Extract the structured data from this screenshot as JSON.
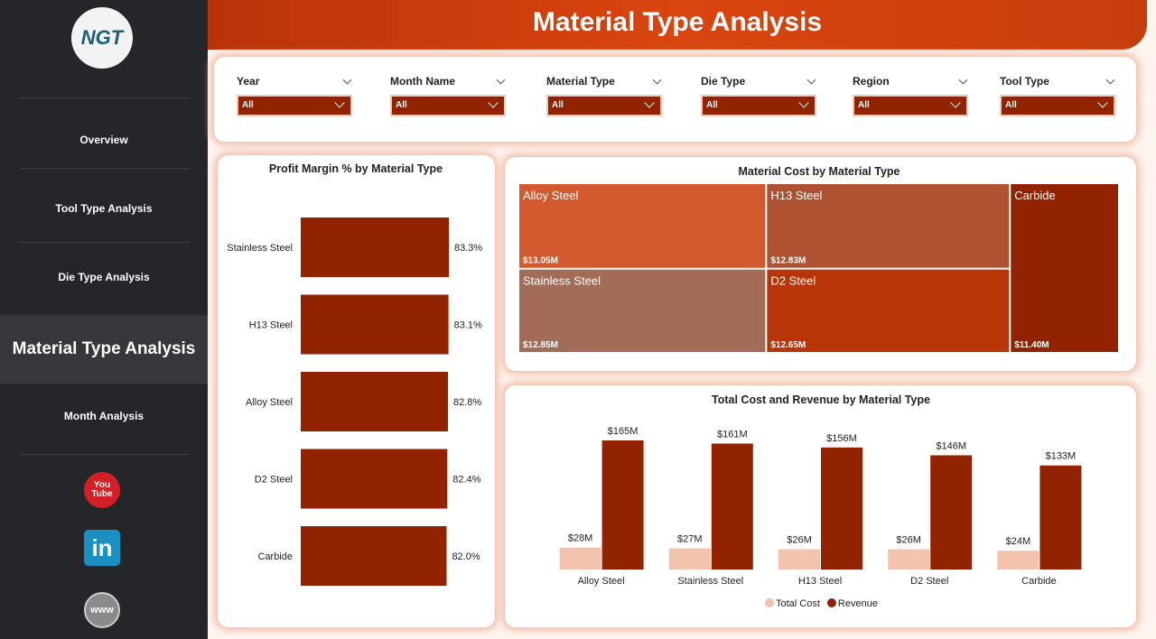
{
  "header": {
    "title": "Material Type Analysis"
  },
  "sidebar": {
    "logo": "NGT",
    "nav": [
      "Overview",
      "Tool Type Analysis",
      "Die Type Analysis",
      "Material Type Analysis",
      "Month Analysis"
    ],
    "active": "Material Type Analysis",
    "icons": [
      "You",
      "Tube",
      "in",
      "www"
    ]
  },
  "filters": [
    {
      "label": "Year",
      "value": "All"
    },
    {
      "label": "Month Name",
      "value": "All"
    },
    {
      "label": "Material Type",
      "value": "All"
    },
    {
      "label": "Die Type",
      "value": "All"
    },
    {
      "label": "Region",
      "value": "All"
    },
    {
      "label": "Tool Type",
      "value": "All"
    }
  ],
  "chart_data": [
    {
      "type": "hbar",
      "title": "Profit Margin % by Material Type",
      "categories": [
        "Stainless Steel",
        "H13 Steel",
        "Alloy Steel",
        "D2 Steel",
        "Carbide"
      ],
      "values": [
        83.3,
        83.1,
        82.8,
        82.4,
        82.0
      ],
      "value_labels": [
        "83.3%",
        "83.1%",
        "82.8%",
        "82.4%",
        "82.0%"
      ],
      "color": "#922300"
    },
    {
      "type": "treemap",
      "title": "Material Cost by Material Type",
      "categories": [
        "Alloy Steel",
        "Stainless Steel",
        "H13 Steel",
        "D2 Steel",
        "Carbide"
      ],
      "values": [
        13.05,
        12.85,
        12.83,
        12.65,
        11.4
      ],
      "value_labels": [
        "$13.05M",
        "$12.85M",
        "$12.83M",
        "$12.65M",
        "$11.40M"
      ],
      "colors": [
        "#d35a2f",
        "#a26c58",
        "#ae5231",
        "#b83508",
        "#922300"
      ]
    },
    {
      "type": "grouped-bar",
      "title": "Total Cost and Revenue by Material Type",
      "categories": [
        "Alloy Steel",
        "Stainless Steel",
        "H13 Steel",
        "D2 Steel",
        "Carbide"
      ],
      "series": [
        {
          "name": "Total Cost",
          "color": "#f4c3ad",
          "values": [
            28,
            27,
            26,
            26,
            24
          ],
          "value_labels": [
            "$28M",
            "$27M",
            "$26M",
            "$26M",
            "$24M"
          ]
        },
        {
          "name": "Revenue",
          "color": "#922300",
          "values": [
            165,
            161,
            156,
            146,
            133
          ],
          "value_labels": [
            "$165M",
            "$161M",
            "$156M",
            "$146M",
            "$133M"
          ]
        }
      ],
      "legend": "bottom"
    }
  ]
}
